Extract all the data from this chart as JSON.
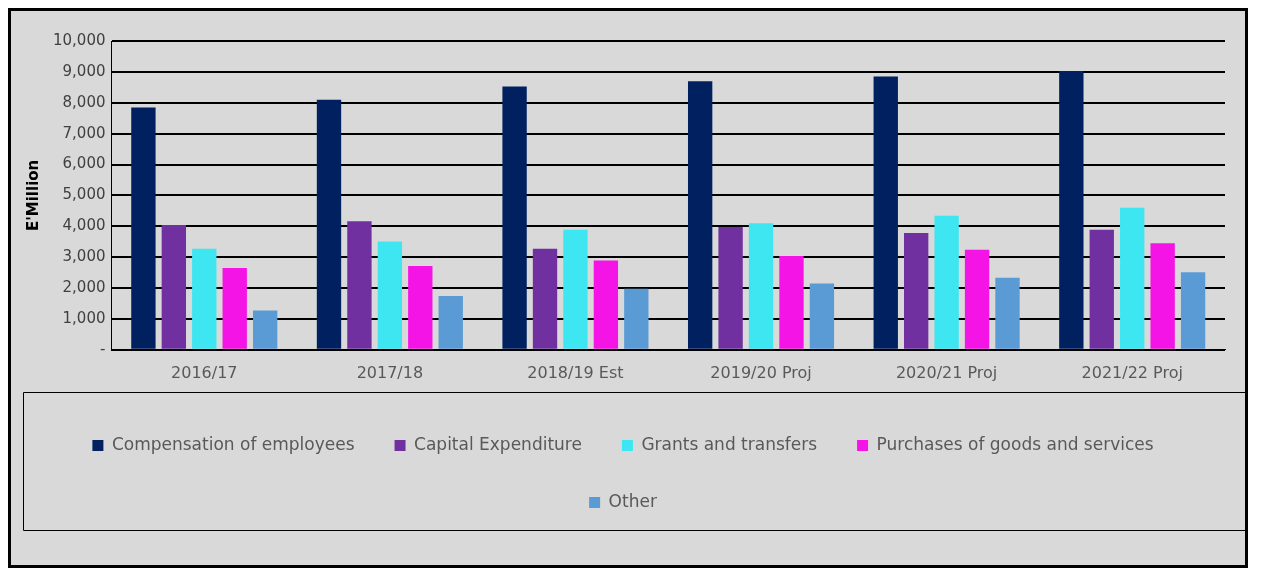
{
  "chart_data": {
    "type": "bar",
    "ylabel": "E'Million",
    "categories": [
      "2016/17",
      "2017/18",
      "2018/19 Est",
      "2019/20 Proj",
      "2020/21 Proj",
      "2021/22 Proj"
    ],
    "series": [
      {
        "name": "Compensation of employees",
        "color": "#002060",
        "values": [
          7850,
          8100,
          8530,
          8700,
          8850,
          9030
        ]
      },
      {
        "name": "Capital Expenditure",
        "color": "#7030a0",
        "values": [
          4040,
          4160,
          3270,
          3980,
          3780,
          3890
        ]
      },
      {
        "name": "Grants and transfers",
        "color": "#3ee6f2",
        "values": [
          3270,
          3510,
          3890,
          4100,
          4340,
          4600
        ]
      },
      {
        "name": "Purchases of goods and services",
        "color": "#f514e6",
        "values": [
          2650,
          2710,
          2890,
          3040,
          3240,
          3450
        ]
      },
      {
        "name": "Other",
        "color": "#5b9bd5",
        "values": [
          1270,
          1740,
          1980,
          2150,
          2330,
          2510
        ]
      }
    ],
    "ylim": [
      0,
      10000
    ],
    "yticks": [
      {
        "value": 0,
        "label": "-"
      },
      {
        "value": 1000,
        "label": "1,000"
      },
      {
        "value": 2000,
        "label": "2,000"
      },
      {
        "value": 3000,
        "label": "3,000"
      },
      {
        "value": 4000,
        "label": "4,000"
      },
      {
        "value": 5000,
        "label": "5,000"
      },
      {
        "value": 6000,
        "label": "6,000"
      },
      {
        "value": 7000,
        "label": "7,000"
      },
      {
        "value": 8000,
        "label": "8,000"
      },
      {
        "value": 9000,
        "label": "9,000"
      },
      {
        "value": 10000,
        "label": "10,000"
      }
    ],
    "grid": "y",
    "legend": "bottom"
  }
}
